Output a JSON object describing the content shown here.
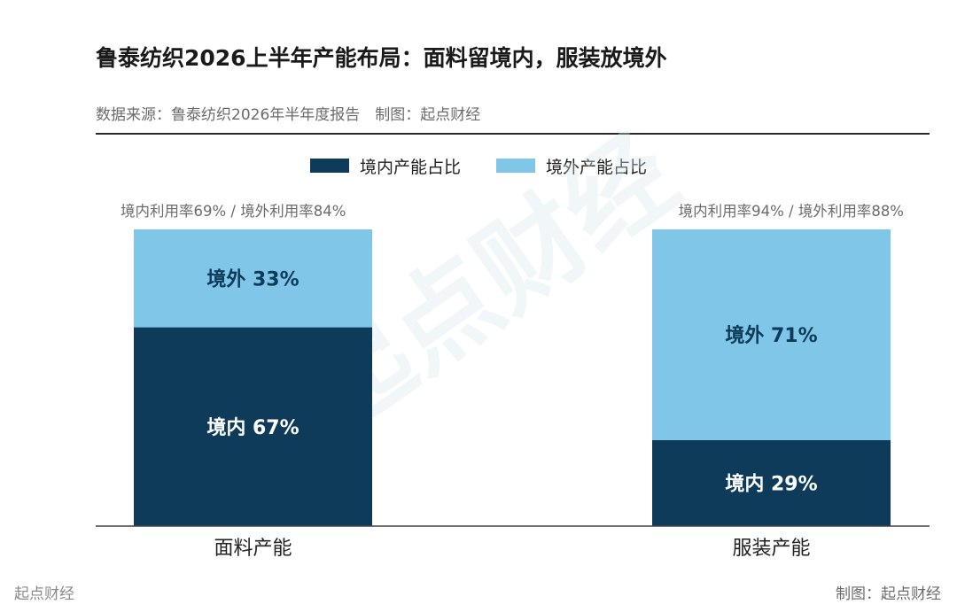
{
  "title": "鲁泰纺织2026上半年产能布局：面料留境内，服装放境外",
  "source": "数据来源：鲁泰纺织2026年半年度报告　制图：起点财经",
  "watermark": "起点财经",
  "footer": {
    "left": "起点财经",
    "right": "制图：起点财经"
  },
  "colors": {
    "domestic": "#0d3b59",
    "overseas": "#7fc6e8",
    "accent_line": "#2a2a2a"
  },
  "chart_data": {
    "type": "bar",
    "stacked": true,
    "categories": [
      "面料产能",
      "服装产能"
    ],
    "series": [
      {
        "name": "境内产能占比",
        "values": [
          67,
          29
        ],
        "labels": [
          "境内 67%",
          "境内 29%"
        ],
        "color": "#0d3b59"
      },
      {
        "name": "境外产能占比",
        "values": [
          33,
          71
        ],
        "labels": [
          "境外 33%",
          "境外 71%"
        ],
        "color": "#7fc6e8"
      }
    ],
    "annotations": [
      "境内利用率69% / 境外利用率84%",
      "境内利用率94% / 境外利用率88%"
    ],
    "ylim": [
      0,
      100
    ],
    "grid": false,
    "legend": "top-center"
  }
}
